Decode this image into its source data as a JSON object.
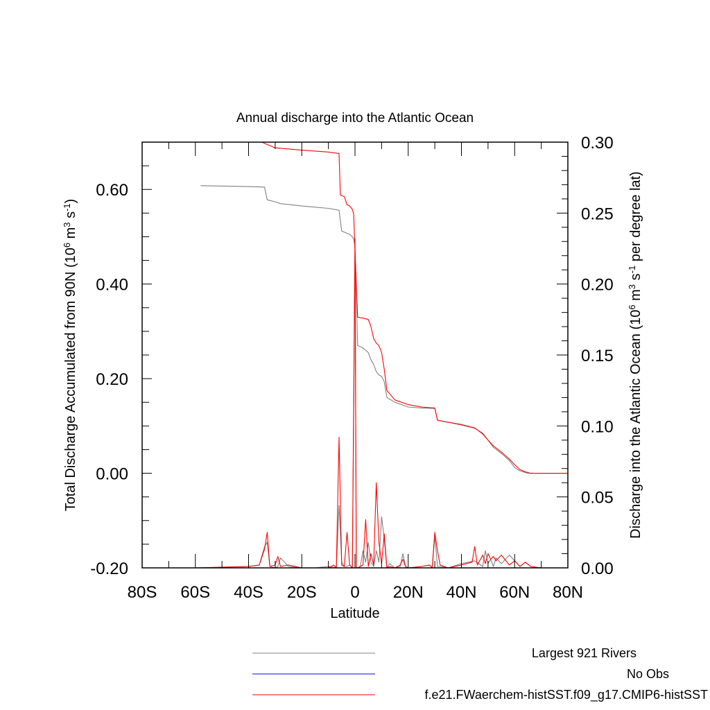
{
  "chart_data": {
    "type": "line",
    "title": "Annual discharge into the Atlantic Ocean",
    "xlabel": "Latitude",
    "ylabel_left": "Total Discharge Accumulated from 90N (10^6 m^3 s^-1)",
    "ylabel_right": "Discharge into the Atlantic Ocean (10^6 m^3 s^-1 per degree lat)",
    "xlim": [
      -80,
      80
    ],
    "ylim_left": [
      -0.2,
      0.7
    ],
    "ylim_right": [
      0.0,
      0.3
    ],
    "x_tick_labels": [
      {
        "value": -80,
        "label": "80S"
      },
      {
        "value": -60,
        "label": "60S"
      },
      {
        "value": -40,
        "label": "40S"
      },
      {
        "value": -20,
        "label": "20S"
      },
      {
        "value": 0,
        "label": "0"
      },
      {
        "value": 20,
        "label": "20N"
      },
      {
        "value": 40,
        "label": "40N"
      },
      {
        "value": 60,
        "label": "60N"
      },
      {
        "value": 80,
        "label": "80N"
      }
    ],
    "y_left_tick_labels": [
      {
        "value": -0.2,
        "label": "-0.20"
      },
      {
        "value": 0.0,
        "label": "0.00"
      },
      {
        "value": 0.2,
        "label": "0.20"
      },
      {
        "value": 0.4,
        "label": "0.40"
      },
      {
        "value": 0.6,
        "label": "0.60"
      }
    ],
    "y_right_tick_labels": [
      {
        "value": 0.0,
        "label": "0.00"
      },
      {
        "value": 0.05,
        "label": "0.05"
      },
      {
        "value": 0.1,
        "label": "0.10"
      },
      {
        "value": 0.15,
        "label": "0.15"
      },
      {
        "value": 0.2,
        "label": "0.20"
      },
      {
        "value": 0.25,
        "label": "0.25"
      },
      {
        "value": 0.3,
        "label": "0.30"
      }
    ],
    "grid": false,
    "legend_position": "bottom",
    "series": [
      {
        "name": "Largest 921 Rivers",
        "color": "#808080",
        "axis": "left",
        "x": [
          -58,
          -40,
          -34,
          -33,
          -30,
          -28,
          -20,
          -10,
          -6,
          -5,
          -2,
          -1,
          -0.5,
          0,
          1,
          3,
          5,
          6,
          7,
          8,
          9,
          10,
          11,
          12,
          15,
          20,
          25,
          30,
          31,
          35,
          40,
          45,
          48,
          50,
          52,
          55,
          58,
          60,
          62,
          65,
          66,
          80
        ],
        "y": [
          0.608,
          0.606,
          0.605,
          0.578,
          0.574,
          0.57,
          0.565,
          0.56,
          0.556,
          0.512,
          0.505,
          0.5,
          0.495,
          0.48,
          0.27,
          0.265,
          0.255,
          0.24,
          0.23,
          0.215,
          0.208,
          0.205,
          0.193,
          0.16,
          0.15,
          0.14,
          0.138,
          0.137,
          0.112,
          0.108,
          0.102,
          0.095,
          0.085,
          0.07,
          0.055,
          0.042,
          0.027,
          0.012,
          0.005,
          0.0,
          0.0,
          0.0
        ]
      },
      {
        "name": "No Obs",
        "color": "#0000ff",
        "axis": "left",
        "x": [],
        "y": []
      },
      {
        "name": "f.e21.FWaerchem-histSST.f09_g17.CMIP6-histSST",
        "color": "#ff0000",
        "axis": "left",
        "x": [
          -36,
          -35,
          -33,
          -30,
          -20,
          -10,
          -6,
          -5.5,
          -4,
          -3,
          -2,
          -1,
          -0.5,
          0,
          0.5,
          1,
          3,
          5,
          6,
          7,
          8,
          9,
          10,
          11,
          12,
          15,
          20,
          25,
          30,
          31,
          35,
          40,
          45,
          48,
          50,
          52,
          55,
          58,
          60,
          62,
          64,
          66,
          80
        ],
        "y": [
          0.7,
          0.7,
          0.695,
          0.688,
          0.683,
          0.679,
          0.676,
          0.588,
          0.585,
          0.568,
          0.565,
          0.558,
          0.548,
          0.47,
          0.4,
          0.33,
          0.328,
          0.325,
          0.31,
          0.285,
          0.275,
          0.27,
          0.255,
          0.22,
          0.175,
          0.155,
          0.145,
          0.14,
          0.138,
          0.112,
          0.108,
          0.103,
          0.096,
          0.083,
          0.07,
          0.058,
          0.045,
          0.03,
          0.018,
          0.008,
          0.003,
          0.0,
          0.0
        ]
      },
      {
        "name": "Largest 921 Rivers",
        "color": "#808080",
        "axis": "right",
        "x": [
          -80,
          -60,
          -50,
          -40,
          -36,
          -34,
          -33,
          -32,
          -30,
          -29,
          -28,
          -25,
          -20,
          -15,
          -10,
          -7,
          -6,
          -5,
          -4,
          -3,
          -2,
          -1,
          0,
          0.5,
          1,
          2,
          3,
          4,
          5,
          6,
          7,
          8,
          9,
          10,
          11,
          12,
          13,
          15,
          17,
          18,
          19,
          20,
          25,
          28,
          29,
          30,
          31,
          32,
          35,
          40,
          45,
          48,
          49,
          50,
          51,
          52,
          53,
          55,
          58,
          60,
          62,
          64,
          66,
          70,
          80
        ],
        "y": [
          0,
          0,
          0.0005,
          0.001,
          0.002,
          0.015,
          0.018,
          0.001,
          0.0,
          0.001,
          0.007,
          0.001,
          0.0,
          0.0,
          0.001,
          0.0,
          0.044,
          0.004,
          0.001,
          0.001,
          0.002,
          0.0,
          0.22,
          0.0,
          0.0,
          0.001,
          0.012,
          0.004,
          0.018,
          0.004,
          0.001,
          0.012,
          0.004,
          0.036,
          0.02,
          0.0,
          0.003,
          0.0,
          0.001,
          0.01,
          0.001,
          0.0,
          0.001,
          0.002,
          0.0,
          0.022,
          0.001,
          0.001,
          0.0,
          0.003,
          0.005,
          0.001,
          0.012,
          0.003,
          0.006,
          0.001,
          0.007,
          0.003,
          0.009,
          0.005,
          0.001,
          0.004,
          0.001,
          0.0,
          0.0
        ]
      },
      {
        "name": "f.e21.FWaerchem-histSST.f09_g17.CMIP6-histSST",
        "color": "#ff0000",
        "axis": "right",
        "x": [
          -80,
          -60,
          -50,
          -40,
          -36,
          -34,
          -33,
          -32,
          -30,
          -29,
          -28,
          -25,
          -20,
          -10,
          -8,
          -7,
          -6,
          -5,
          -4,
          -3,
          -2,
          -1,
          0,
          0.5,
          1,
          2,
          3,
          4,
          5,
          6,
          7,
          8,
          9,
          10,
          11,
          12,
          13,
          15,
          17,
          18,
          19,
          20,
          25,
          28,
          29,
          30,
          31,
          32,
          35,
          40,
          44,
          45,
          46,
          48,
          49,
          50,
          51,
          52,
          53,
          55,
          58,
          60,
          62,
          64,
          66,
          70,
          80
        ],
        "y": [
          0,
          0,
          0.0005,
          0.001,
          0.002,
          0.013,
          0.025,
          0.001,
          0.002,
          0.008,
          0.001,
          0.002,
          0.0,
          0.0,
          0.002,
          0.0,
          0.092,
          0.002,
          0.001,
          0.025,
          0.002,
          0.0,
          0.232,
          0.0,
          0.0,
          0.001,
          0.002,
          0.034,
          0.001,
          0.01,
          0.002,
          0.06,
          0.018,
          0.003,
          0.024,
          0.0,
          0.001,
          0.0,
          0.002,
          0.006,
          0.001,
          0.0,
          0.001,
          0.002,
          0.0,
          0.025,
          0.012,
          0.002,
          0.0,
          0.002,
          0.004,
          0.015,
          0.002,
          0.009,
          0.003,
          0.01,
          0.006,
          0.008,
          0.005,
          0.009,
          0.002,
          0.005,
          0.001,
          0.004,
          0.001,
          0.0,
          0.0
        ]
      }
    ],
    "legend": [
      {
        "label": "Largest 921 Rivers",
        "color": "#808080"
      },
      {
        "label": "No Obs",
        "color": "#0000ff"
      },
      {
        "label": "f.e21.FWaerchem-histSST.f09_g17.CMIP6-histSST",
        "color": "#ff0000"
      }
    ]
  }
}
